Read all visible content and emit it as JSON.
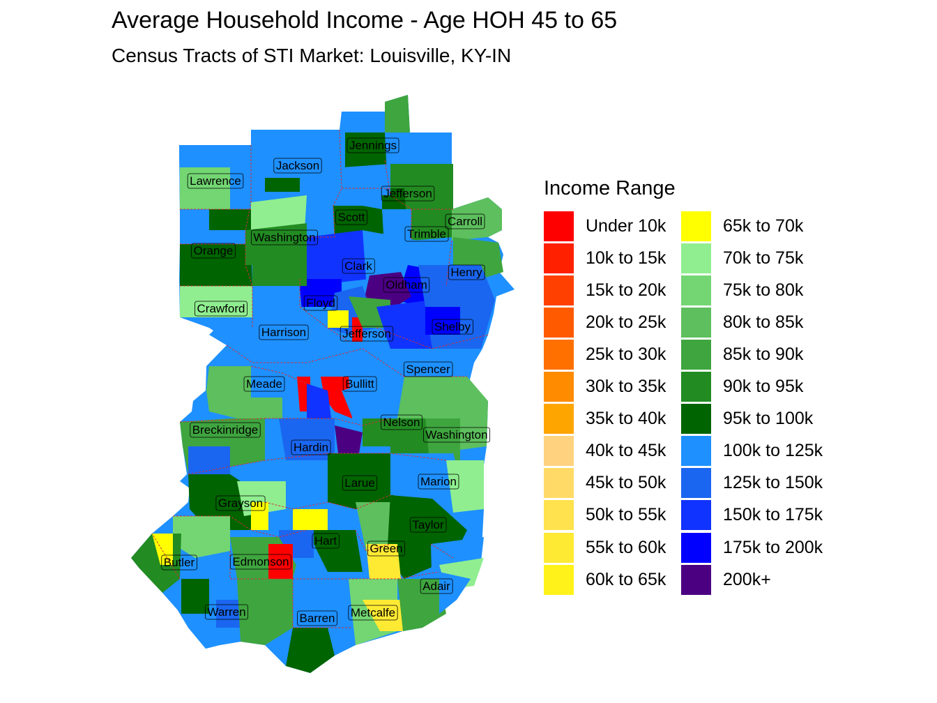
{
  "title": "Average Household Income - Age HOH 45 to 65",
  "subtitle": "Census Tracts of STI Market: Louisville, KY-IN",
  "legend": {
    "title": "Income Range",
    "items": [
      {
        "label": "Under 10k",
        "color": "#FF0000"
      },
      {
        "label": "10k to 15k",
        "color": "#FF2000"
      },
      {
        "label": "15k to 20k",
        "color": "#FF4000"
      },
      {
        "label": "20k to 25k",
        "color": "#FF5A00"
      },
      {
        "label": "25k to 30k",
        "color": "#FF7000"
      },
      {
        "label": "30k to 35k",
        "color": "#FF8C00"
      },
      {
        "label": "35k to 40k",
        "color": "#FFA500"
      },
      {
        "label": "40k to 45k",
        "color": "#FFD27F"
      },
      {
        "label": "45k to 50k",
        "color": "#FFDA66"
      },
      {
        "label": "50k to 55k",
        "color": "#FFE24D"
      },
      {
        "label": "55k to 60k",
        "color": "#FFEA33"
      },
      {
        "label": "60k to 65k",
        "color": "#FFF21A"
      },
      {
        "label": "65k to 70k",
        "color": "#FFFF00"
      },
      {
        "label": "70k to 75k",
        "color": "#90EE90"
      },
      {
        "label": "75k to 80k",
        "color": "#73D673"
      },
      {
        "label": "80k to 85k",
        "color": "#5DBF5D"
      },
      {
        "label": "85k to 90k",
        "color": "#3FA53F"
      },
      {
        "label": "90k to 95k",
        "color": "#228B22"
      },
      {
        "label": "95k to 100k",
        "color": "#006400"
      },
      {
        "label": "100k to 125k",
        "color": "#1E90FF"
      },
      {
        "label": "125k to 150k",
        "color": "#1A66F0"
      },
      {
        "label": "150k to 175k",
        "color": "#1033FF"
      },
      {
        "label": "175k to 200k",
        "color": "#0000FF"
      },
      {
        "label": "200k+",
        "color": "#4B0082"
      }
    ]
  },
  "counties": [
    "Jennings",
    "Jackson",
    "Lawrence",
    "Jefferson",
    "Scott",
    "Carroll",
    "Trimble",
    "Washington",
    "Orange",
    "Clark",
    "Henry",
    "Oldham",
    "Floyd",
    "Crawford",
    "Shelby",
    "Harrison",
    "Jefferson",
    "Spencer",
    "Meade",
    "Bullitt",
    "Nelson",
    "Breckinridge",
    "Washington",
    "Hardin",
    "Marion",
    "Larue",
    "Grayson",
    "Taylor",
    "Hart",
    "Green",
    "Butler",
    "Edmonson",
    "Adair",
    "Warren",
    "Metcalfe",
    "Barren"
  ]
}
